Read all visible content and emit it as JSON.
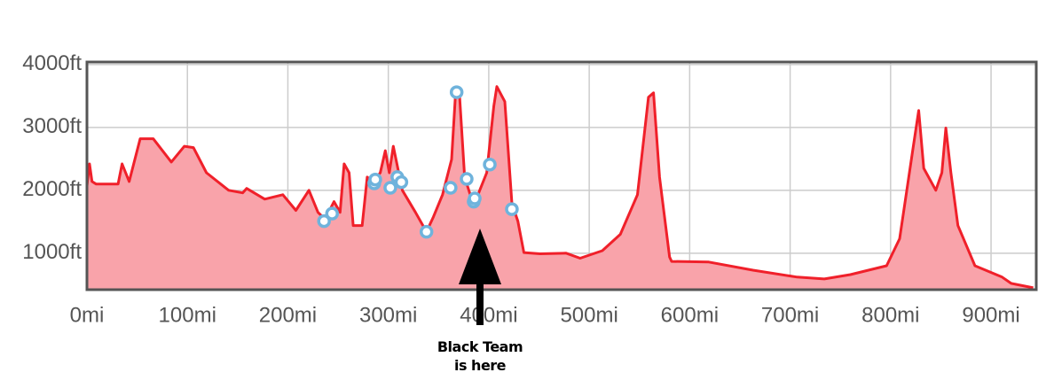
{
  "chart_data": {
    "type": "area",
    "annotation": [
      "Black Team",
      "is here"
    ],
    "xlim": [
      0,
      945
    ],
    "ylim": [
      420,
      4040
    ],
    "xticks": [
      {
        "value": 0,
        "label": "0mi"
      },
      {
        "value": 100,
        "label": "100mi"
      },
      {
        "value": 200,
        "label": "200mi"
      },
      {
        "value": 300,
        "label": "300mi"
      },
      {
        "value": 400,
        "label": "400mi"
      },
      {
        "value": 500,
        "label": "500mi"
      },
      {
        "value": 600,
        "label": "600mi"
      },
      {
        "value": 700,
        "label": "700mi"
      },
      {
        "value": 800,
        "label": "800mi"
      },
      {
        "value": 900,
        "label": "900mi"
      }
    ],
    "yticks": [
      {
        "value": 1000,
        "label": "1000ft"
      },
      {
        "value": 2000,
        "label": "2000ft"
      },
      {
        "value": 3000,
        "label": "3000ft"
      },
      {
        "value": 4000,
        "label": "4000ft"
      }
    ],
    "grid": true,
    "profile": {
      "color": "#f0202a",
      "fill": "#f9a3aa",
      "x": [
        0,
        2.6,
        5,
        9,
        31,
        35,
        42,
        53,
        66,
        84,
        97,
        106,
        119,
        141,
        155,
        159,
        177,
        195,
        208,
        221,
        230,
        237,
        246,
        252,
        256,
        261,
        265,
        274,
        279,
        285,
        292,
        297,
        301,
        305,
        314,
        327,
        338,
        345,
        354,
        363,
        367,
        371,
        376,
        385,
        398,
        405,
        408,
        416,
        423,
        429,
        435,
        451,
        477,
        491,
        513,
        531,
        548,
        559,
        564,
        570,
        580,
        582,
        619,
        663,
        707,
        734,
        760,
        796,
        809,
        822,
        828,
        833,
        845,
        851,
        855,
        860,
        867,
        884,
        911,
        920,
        942
      ],
      "values": [
        2070,
        2420,
        2140,
        2100,
        2100,
        2420,
        2140,
        2820,
        2820,
        2450,
        2700,
        2680,
        2280,
        2000,
        1960,
        2030,
        1860,
        1930,
        1680,
        2000,
        1650,
        1540,
        1820,
        1650,
        2420,
        2280,
        1440,
        1440,
        2210,
        2140,
        2280,
        2630,
        2280,
        2700,
        2000,
        1650,
        1340,
        1580,
        1930,
        2490,
        3550,
        3480,
        2210,
        1760,
        2280,
        3340,
        3650,
        3410,
        1790,
        1510,
        1010,
        990,
        1000,
        920,
        1040,
        1300,
        1930,
        3480,
        3550,
        2210,
        940,
        870,
        860,
        730,
        620,
        590,
        660,
        800,
        1230,
        2630,
        3270,
        2350,
        2000,
        2280,
        2990,
        2280,
        1440,
        800,
        620,
        520,
        450
      ]
    },
    "markers": {
      "color": "#6fb3dc",
      "x": [
        236,
        244,
        286,
        287,
        302,
        309,
        313,
        338,
        362,
        368,
        378,
        385,
        386,
        401,
        423
      ],
      "values": [
        1510,
        1630,
        2110,
        2170,
        2040,
        2210,
        2130,
        1340,
        2040,
        3560,
        2180,
        1820,
        1870,
        2410,
        1700
      ]
    }
  }
}
